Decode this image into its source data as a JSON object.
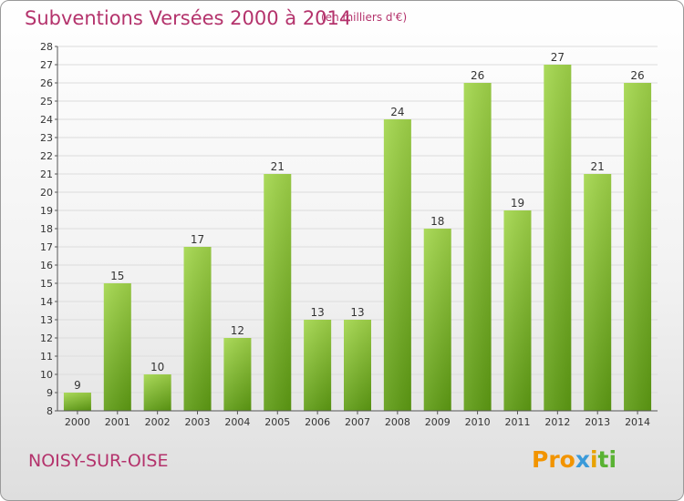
{
  "header": {
    "title": "Subventions Versées 2000 à 2014",
    "subtitle": "(en milliers d'€)"
  },
  "footer": {
    "city": "NOISY-SUR-OISE",
    "brand": [
      "Pro",
      "x",
      "i",
      "ti"
    ]
  },
  "colors": {
    "title": "#b4336c",
    "bar_light": "#a2d64a",
    "bar_dark": "#5e9c13",
    "axis": "#555555",
    "grid": "#dcdcdc"
  },
  "chart_data": {
    "type": "bar",
    "title": "Subventions Versées 2000 à 2014",
    "subtitle": "(en milliers d'€)",
    "categories": [
      "2000",
      "2001",
      "2002",
      "2003",
      "2004",
      "2005",
      "2006",
      "2007",
      "2008",
      "2009",
      "2010",
      "2011",
      "2012",
      "2013",
      "2014"
    ],
    "values": [
      9,
      15,
      10,
      17,
      12,
      21,
      13,
      13,
      24,
      18,
      26,
      19,
      27,
      21,
      26
    ],
    "ylim": [
      8,
      28
    ],
    "yticks": [
      8,
      9,
      10,
      11,
      12,
      13,
      14,
      15,
      16,
      17,
      18,
      19,
      20,
      21,
      22,
      23,
      24,
      25,
      26,
      27,
      28
    ],
    "grid": true,
    "data_labels": true
  }
}
